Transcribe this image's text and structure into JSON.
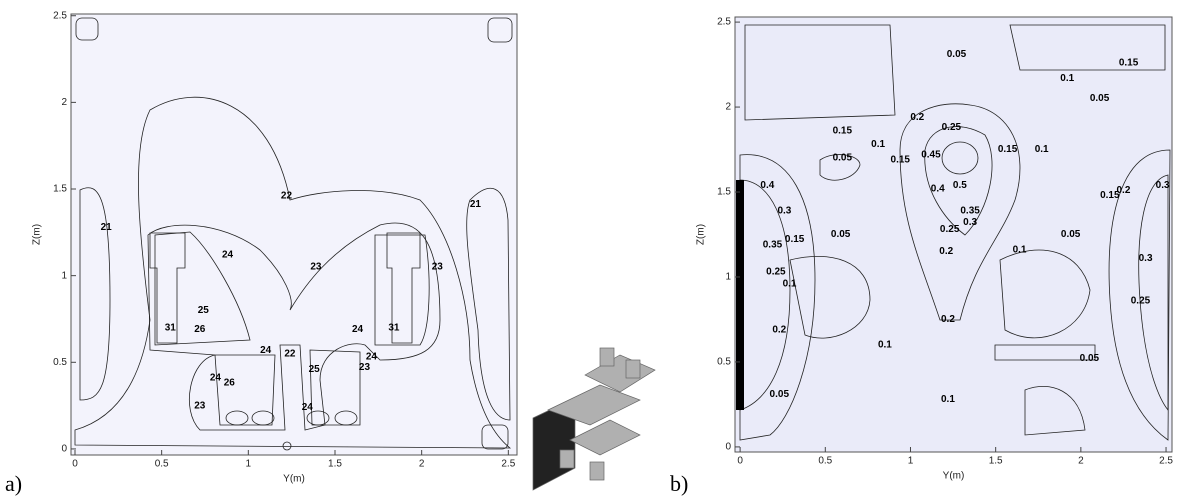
{
  "chart_data": [
    {
      "type": "contour",
      "panel_label": "a)",
      "xlabel": "Y(m)",
      "ylabel": "Z(m)",
      "xlim": [
        -0.023,
        2.55
      ],
      "ylim": [
        -0.035,
        2.51
      ],
      "xticks": [
        0,
        0.5,
        1,
        1.5,
        2,
        2.5
      ],
      "yticks": [
        0,
        0.5,
        1,
        1.5,
        2,
        2.5
      ],
      "contour_labels": [
        {
          "level": 21,
          "x": 0.18,
          "y": 1.28
        },
        {
          "level": 21,
          "x": 2.31,
          "y": 1.41
        },
        {
          "level": 22,
          "x": 1.22,
          "y": 1.46
        },
        {
          "level": 24,
          "x": 0.88,
          "y": 1.12
        },
        {
          "level": 23,
          "x": 1.39,
          "y": 1.05
        },
        {
          "level": 23,
          "x": 2.09,
          "y": 1.05
        },
        {
          "level": 25,
          "x": 0.74,
          "y": 0.8
        },
        {
          "level": 26,
          "x": 0.72,
          "y": 0.69
        },
        {
          "level": 24,
          "x": 1.63,
          "y": 0.69
        },
        {
          "level": 24,
          "x": 1.1,
          "y": 0.57
        },
        {
          "level": 22,
          "x": 1.24,
          "y": 0.55
        },
        {
          "level": 24,
          "x": 1.71,
          "y": 0.53
        },
        {
          "level": 23,
          "x": 1.67,
          "y": 0.47
        },
        {
          "level": 25,
          "x": 1.38,
          "y": 0.46
        },
        {
          "level": 24,
          "x": 0.81,
          "y": 0.41
        },
        {
          "level": 26,
          "x": 0.89,
          "y": 0.38
        },
        {
          "level": 23,
          "x": 0.72,
          "y": 0.25
        },
        {
          "level": 24,
          "x": 1.34,
          "y": 0.24
        },
        {
          "level": 31,
          "x": 0.55,
          "y": 0.7
        },
        {
          "level": 31,
          "x": 1.84,
          "y": 0.7
        }
      ]
    },
    {
      "type": "contour",
      "panel_label": "b)",
      "xlabel": "Y(m)",
      "ylabel": "Z(m)",
      "xlim": [
        -0.03,
        2.535
      ],
      "ylim": [
        -0.03,
        2.53
      ],
      "xticks": [
        0,
        0.5,
        1,
        1.5,
        2,
        2.5
      ],
      "yticks": [
        0,
        0.5,
        1,
        1.5,
        2,
        2.5
      ],
      "contour_labels": [
        {
          "level": 0.05,
          "x": 1.27,
          "y": 2.31
        },
        {
          "level": 0.15,
          "x": 2.28,
          "y": 2.26
        },
        {
          "level": 0.1,
          "x": 1.92,
          "y": 2.17
        },
        {
          "level": 0.05,
          "x": 2.11,
          "y": 2.05
        },
        {
          "level": 0.15,
          "x": 0.6,
          "y": 1.86
        },
        {
          "level": 0.05,
          "x": 0.6,
          "y": 1.7
        },
        {
          "level": 0.1,
          "x": 0.81,
          "y": 1.78
        },
        {
          "level": 0.15,
          "x": 0.94,
          "y": 1.69
        },
        {
          "level": 0.2,
          "x": 1.04,
          "y": 1.94
        },
        {
          "level": 0.25,
          "x": 1.24,
          "y": 1.88
        },
        {
          "level": 0.45,
          "x": 1.12,
          "y": 1.72
        },
        {
          "level": 0.5,
          "x": 1.29,
          "y": 1.54
        },
        {
          "level": 0.4,
          "x": 1.16,
          "y": 1.52
        },
        {
          "level": 0.35,
          "x": 1.35,
          "y": 1.39
        },
        {
          "level": 0.3,
          "x": 1.35,
          "y": 1.32
        },
        {
          "level": 0.25,
          "x": 1.23,
          "y": 1.28
        },
        {
          "level": 0.2,
          "x": 1.21,
          "y": 1.15
        },
        {
          "level": 0.15,
          "x": 1.57,
          "y": 1.75
        },
        {
          "level": 0.1,
          "x": 1.77,
          "y": 1.75
        },
        {
          "level": 0.4,
          "x": 0.16,
          "y": 1.54
        },
        {
          "level": 0.3,
          "x": 0.26,
          "y": 1.39
        },
        {
          "level": 0.35,
          "x": 0.19,
          "y": 1.19
        },
        {
          "level": 0.25,
          "x": 0.21,
          "y": 1.03
        },
        {
          "level": 0.15,
          "x": 0.32,
          "y": 1.22
        },
        {
          "level": 0.1,
          "x": 0.29,
          "y": 0.96
        },
        {
          "level": 0.2,
          "x": 0.23,
          "y": 0.69
        },
        {
          "level": 0.05,
          "x": 0.59,
          "y": 1.25
        },
        {
          "level": 0.05,
          "x": 0.23,
          "y": 0.31
        },
        {
          "level": 0.1,
          "x": 0.85,
          "y": 0.6
        },
        {
          "level": 0.1,
          "x": 1.64,
          "y": 1.16
        },
        {
          "level": 0.05,
          "x": 1.94,
          "y": 1.25
        },
        {
          "level": 0.05,
          "x": 2.05,
          "y": 0.52
        },
        {
          "level": 0.2,
          "x": 1.22,
          "y": 0.75
        },
        {
          "level": 0.1,
          "x": 1.22,
          "y": 0.28
        },
        {
          "level": 0.15,
          "x": 2.17,
          "y": 1.48
        },
        {
          "level": 0.2,
          "x": 2.25,
          "y": 1.51
        },
        {
          "level": 0.3,
          "x": 2.48,
          "y": 1.54
        },
        {
          "level": 0.3,
          "x": 2.38,
          "y": 1.11
        },
        {
          "level": 0.25,
          "x": 2.35,
          "y": 0.86
        }
      ]
    }
  ]
}
